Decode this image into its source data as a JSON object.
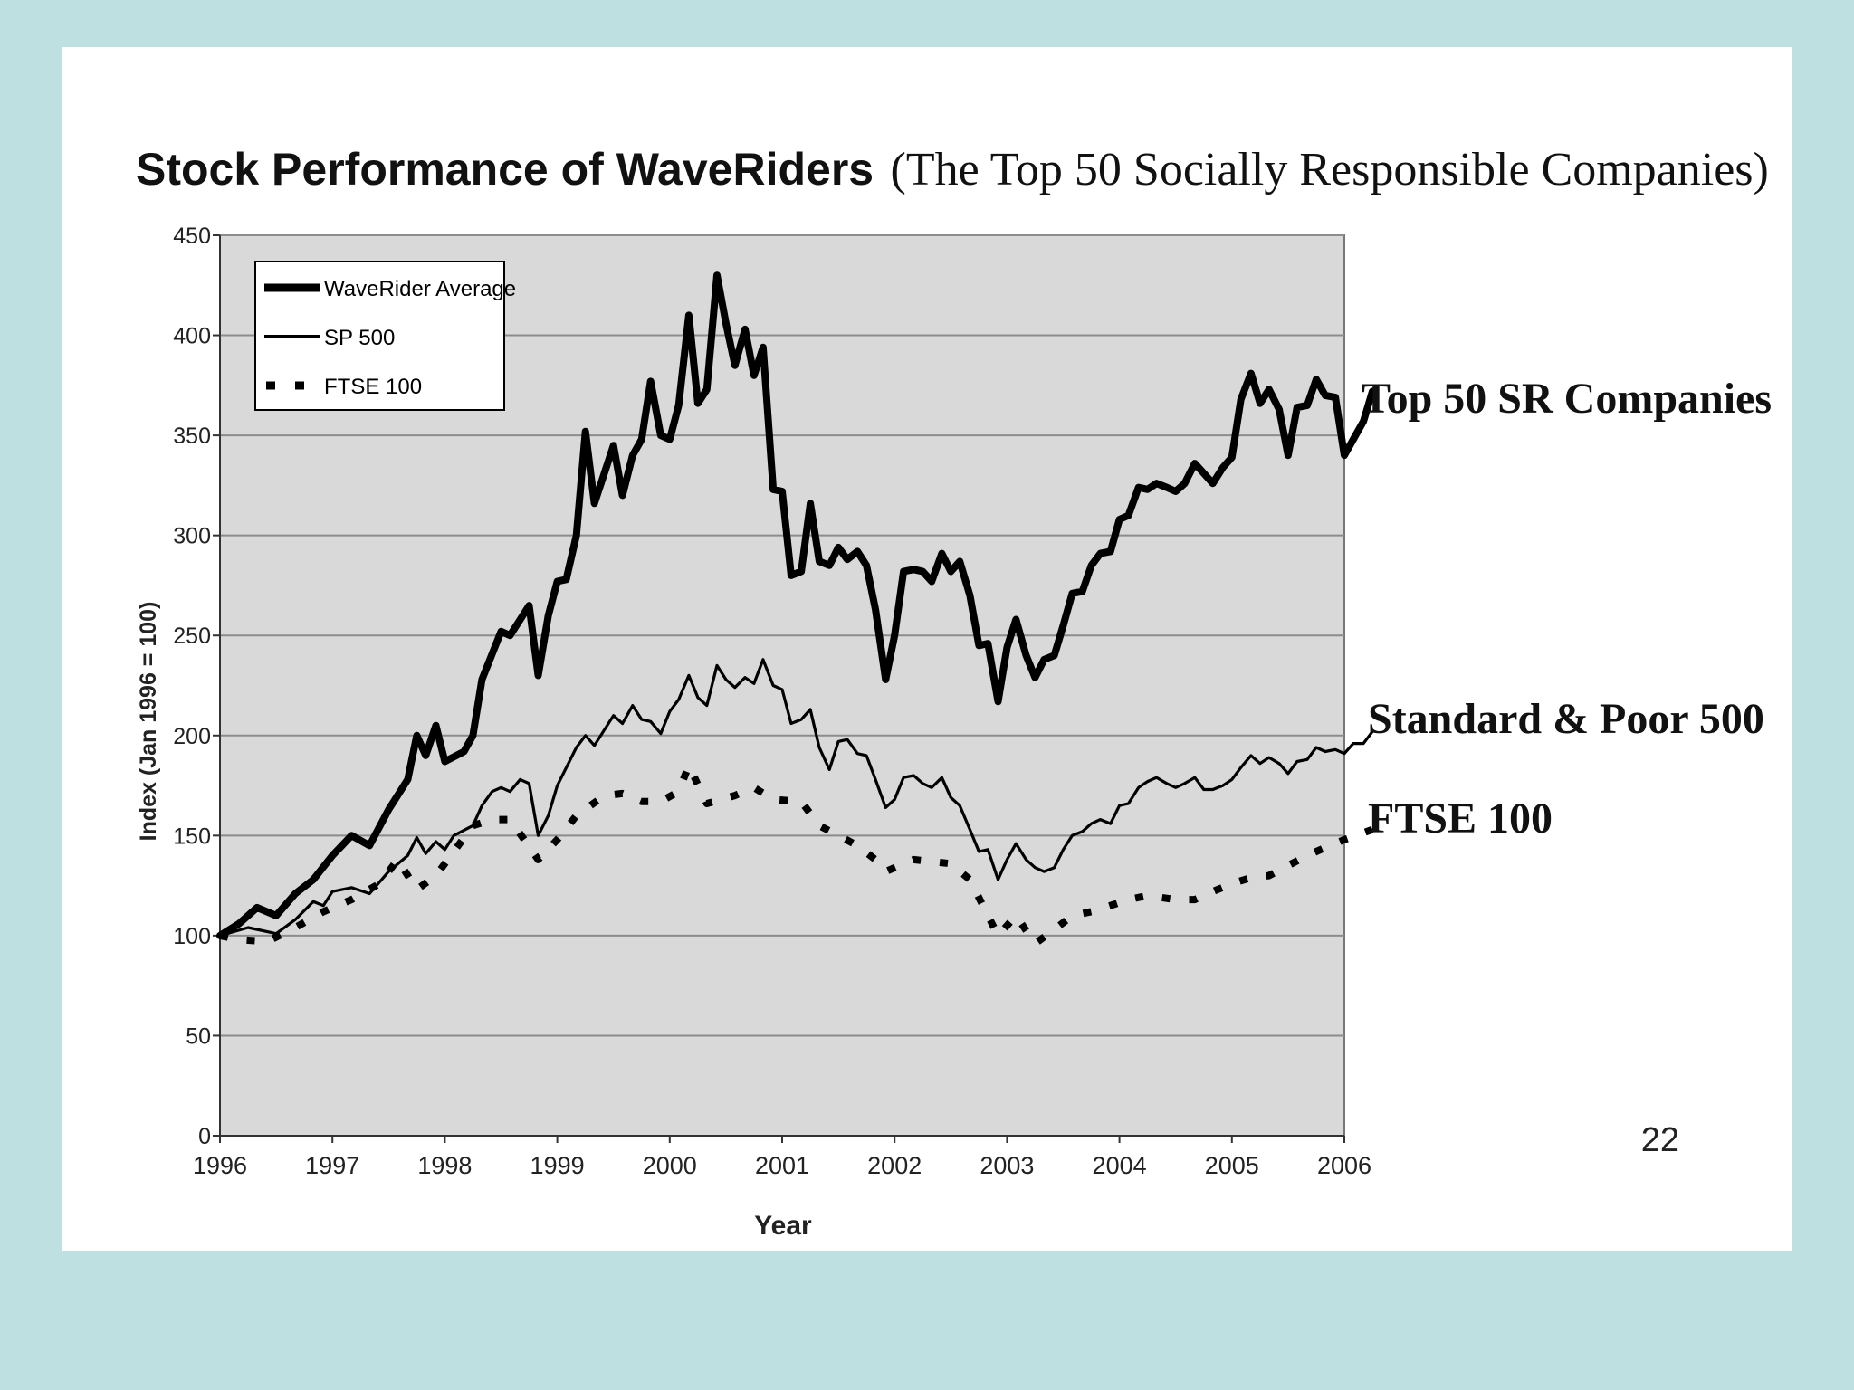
{
  "slide": {
    "page_number": "22"
  },
  "chart_data": {
    "type": "line",
    "title_bold": "Stock Performance of WaveRiders",
    "title_rest": "(The Top 50 Socially Responsible Companies)",
    "xlabel": "Year",
    "ylabel": "Index (Jan 1996 = 100)",
    "xlim": [
      1996,
      2006
    ],
    "ylim": [
      0,
      450
    ],
    "y_ticks": [
      0,
      50,
      100,
      150,
      200,
      250,
      300,
      350,
      400,
      450
    ],
    "y_tick_labels": [
      "0",
      "50",
      "100",
      "150",
      "200",
      "250",
      "300",
      "350",
      "400",
      "450"
    ],
    "x_ticks": [
      1996,
      1997,
      1998,
      1999,
      2000,
      2001,
      2002,
      2003,
      2004,
      2005,
      2006
    ],
    "x_tick_labels": [
      "1996",
      "1997",
      "1998",
      "1999",
      "2000",
      "2001",
      "2002",
      "2003",
      "2004",
      "2005",
      "2006"
    ],
    "grid": true,
    "legend": {
      "position": "top-left",
      "entries": [
        "WaveRider Average",
        "SP 500",
        "FTSE 100"
      ]
    },
    "annotations": [
      "Top 50 SR Companies",
      "Standard & Poor 500",
      "FTSE 100"
    ],
    "series": [
      {
        "name": "WaveRider Average",
        "style": "thick",
        "color": "#000000",
        "points": [
          [
            1996.0,
            100
          ],
          [
            1996.17,
            106
          ],
          [
            1996.33,
            114
          ],
          [
            1996.5,
            110
          ],
          [
            1996.67,
            121
          ],
          [
            1996.83,
            128
          ],
          [
            1997.0,
            140
          ],
          [
            1997.17,
            150
          ],
          [
            1997.33,
            145
          ],
          [
            1997.5,
            163
          ],
          [
            1997.67,
            178
          ],
          [
            1997.75,
            200
          ],
          [
            1997.83,
            190
          ],
          [
            1997.92,
            205
          ],
          [
            1998.0,
            187
          ],
          [
            1998.17,
            192
          ],
          [
            1998.25,
            200
          ],
          [
            1998.33,
            228
          ],
          [
            1998.5,
            252
          ],
          [
            1998.58,
            250
          ],
          [
            1998.75,
            265
          ],
          [
            1998.83,
            230
          ],
          [
            1998.92,
            260
          ],
          [
            1999.0,
            277
          ],
          [
            1999.08,
            278
          ],
          [
            1999.17,
            300
          ],
          [
            1999.25,
            352
          ],
          [
            1999.33,
            316
          ],
          [
            1999.5,
            345
          ],
          [
            1999.58,
            320
          ],
          [
            1999.67,
            340
          ],
          [
            1999.75,
            348
          ],
          [
            1999.83,
            377
          ],
          [
            1999.92,
            350
          ],
          [
            2000.0,
            348
          ],
          [
            2000.08,
            365
          ],
          [
            2000.17,
            410
          ],
          [
            2000.25,
            366
          ],
          [
            2000.33,
            373
          ],
          [
            2000.42,
            430
          ],
          [
            2000.5,
            406
          ],
          [
            2000.58,
            385
          ],
          [
            2000.67,
            403
          ],
          [
            2000.75,
            380
          ],
          [
            2000.83,
            394
          ],
          [
            2000.92,
            323
          ],
          [
            2001.0,
            322
          ],
          [
            2001.08,
            280
          ],
          [
            2001.17,
            282
          ],
          [
            2001.25,
            316
          ],
          [
            2001.33,
            287
          ],
          [
            2001.42,
            285
          ],
          [
            2001.5,
            294
          ],
          [
            2001.58,
            288
          ],
          [
            2001.67,
            292
          ],
          [
            2001.75,
            285
          ],
          [
            2001.83,
            263
          ],
          [
            2001.92,
            228
          ],
          [
            2002.0,
            250
          ],
          [
            2002.08,
            282
          ],
          [
            2002.17,
            283
          ],
          [
            2002.25,
            282
          ],
          [
            2002.33,
            277
          ],
          [
            2002.42,
            291
          ],
          [
            2002.5,
            282
          ],
          [
            2002.58,
            287
          ],
          [
            2002.67,
            270
          ],
          [
            2002.75,
            245
          ],
          [
            2002.83,
            246
          ],
          [
            2002.92,
            217
          ],
          [
            2003.0,
            244
          ],
          [
            2003.08,
            258
          ],
          [
            2003.17,
            240
          ],
          [
            2003.25,
            229
          ],
          [
            2003.33,
            238
          ],
          [
            2003.42,
            240
          ],
          [
            2003.5,
            255
          ],
          [
            2003.58,
            271
          ],
          [
            2003.67,
            272
          ],
          [
            2003.75,
            285
          ],
          [
            2003.83,
            291
          ],
          [
            2003.92,
            292
          ],
          [
            2004.0,
            308
          ],
          [
            2004.08,
            310
          ],
          [
            2004.17,
            324
          ],
          [
            2004.25,
            323
          ],
          [
            2004.33,
            326
          ],
          [
            2004.42,
            324
          ],
          [
            2004.5,
            322
          ],
          [
            2004.58,
            326
          ],
          [
            2004.67,
            336
          ],
          [
            2004.75,
            331
          ],
          [
            2004.83,
            326
          ],
          [
            2004.92,
            334
          ],
          [
            2005.0,
            339
          ],
          [
            2005.08,
            368
          ],
          [
            2005.17,
            381
          ],
          [
            2005.25,
            366
          ],
          [
            2005.33,
            373
          ],
          [
            2005.42,
            363
          ],
          [
            2005.5,
            340
          ],
          [
            2005.58,
            364
          ],
          [
            2005.67,
            365
          ],
          [
            2005.75,
            378
          ],
          [
            2005.83,
            370
          ],
          [
            2005.92,
            369
          ],
          [
            2006.0,
            340
          ],
          [
            2006.08,
            348
          ],
          [
            2006.17,
            357
          ],
          [
            2006.25,
            372
          ]
        ]
      },
      {
        "name": "SP 500",
        "style": "thin",
        "color": "#000000",
        "points": [
          [
            1996.0,
            100
          ],
          [
            1996.25,
            104
          ],
          [
            1996.5,
            101
          ],
          [
            1996.67,
            108
          ],
          [
            1996.83,
            117
          ],
          [
            1996.92,
            115
          ],
          [
            1997.0,
            122
          ],
          [
            1997.17,
            124
          ],
          [
            1997.33,
            121
          ],
          [
            1997.5,
            132
          ],
          [
            1997.67,
            140
          ],
          [
            1997.75,
            149
          ],
          [
            1997.83,
            141
          ],
          [
            1997.92,
            147
          ],
          [
            1998.0,
            143
          ],
          [
            1998.08,
            150
          ],
          [
            1998.25,
            155
          ],
          [
            1998.33,
            165
          ],
          [
            1998.42,
            172
          ],
          [
            1998.5,
            174
          ],
          [
            1998.58,
            172
          ],
          [
            1998.67,
            178
          ],
          [
            1998.75,
            176
          ],
          [
            1998.83,
            150
          ],
          [
            1998.92,
            160
          ],
          [
            1999.0,
            175
          ],
          [
            1999.17,
            194
          ],
          [
            1999.25,
            200
          ],
          [
            1999.33,
            195
          ],
          [
            1999.5,
            210
          ],
          [
            1999.58,
            206
          ],
          [
            1999.67,
            215
          ],
          [
            1999.75,
            208
          ],
          [
            1999.83,
            207
          ],
          [
            1999.92,
            201
          ],
          [
            2000.0,
            212
          ],
          [
            2000.08,
            218
          ],
          [
            2000.17,
            230
          ],
          [
            2000.25,
            219
          ],
          [
            2000.33,
            215
          ],
          [
            2000.42,
            235
          ],
          [
            2000.5,
            228
          ],
          [
            2000.58,
            224
          ],
          [
            2000.67,
            229
          ],
          [
            2000.75,
            226
          ],
          [
            2000.83,
            238
          ],
          [
            2000.92,
            225
          ],
          [
            2001.0,
            223
          ],
          [
            2001.08,
            206
          ],
          [
            2001.17,
            208
          ],
          [
            2001.25,
            213
          ],
          [
            2001.33,
            194
          ],
          [
            2001.42,
            183
          ],
          [
            2001.5,
            197
          ],
          [
            2001.58,
            198
          ],
          [
            2001.67,
            191
          ],
          [
            2001.75,
            190
          ],
          [
            2001.83,
            178
          ],
          [
            2001.92,
            164
          ],
          [
            2002.0,
            168
          ],
          [
            2002.08,
            179
          ],
          [
            2002.17,
            180
          ],
          [
            2002.25,
            176
          ],
          [
            2002.33,
            174
          ],
          [
            2002.42,
            179
          ],
          [
            2002.5,
            169
          ],
          [
            2002.58,
            165
          ],
          [
            2002.67,
            153
          ],
          [
            2002.75,
            142
          ],
          [
            2002.83,
            143
          ],
          [
            2002.92,
            128
          ],
          [
            2003.0,
            138
          ],
          [
            2003.08,
            146
          ],
          [
            2003.17,
            138
          ],
          [
            2003.25,
            134
          ],
          [
            2003.33,
            132
          ],
          [
            2003.42,
            134
          ],
          [
            2003.5,
            143
          ],
          [
            2003.58,
            150
          ],
          [
            2003.67,
            152
          ],
          [
            2003.75,
            156
          ],
          [
            2003.83,
            158
          ],
          [
            2003.92,
            156
          ],
          [
            2004.0,
            165
          ],
          [
            2004.08,
            166
          ],
          [
            2004.17,
            174
          ],
          [
            2004.25,
            177
          ],
          [
            2004.33,
            179
          ],
          [
            2004.42,
            176
          ],
          [
            2004.5,
            174
          ],
          [
            2004.58,
            176
          ],
          [
            2004.67,
            179
          ],
          [
            2004.75,
            173
          ],
          [
            2004.83,
            173
          ],
          [
            2004.92,
            175
          ],
          [
            2005.0,
            178
          ],
          [
            2005.08,
            184
          ],
          [
            2005.17,
            190
          ],
          [
            2005.25,
            186
          ],
          [
            2005.33,
            189
          ],
          [
            2005.42,
            186
          ],
          [
            2005.5,
            181
          ],
          [
            2005.58,
            187
          ],
          [
            2005.67,
            188
          ],
          [
            2005.75,
            194
          ],
          [
            2005.83,
            192
          ],
          [
            2005.92,
            193
          ],
          [
            2006.0,
            191
          ],
          [
            2006.08,
            196
          ],
          [
            2006.17,
            196
          ],
          [
            2006.25,
            202
          ]
        ]
      },
      {
        "name": "FTSE 100",
        "style": "dotted",
        "color": "#000000",
        "points": [
          [
            1996.0,
            100
          ],
          [
            1996.17,
            98
          ],
          [
            1996.42,
            97
          ],
          [
            1996.67,
            104
          ],
          [
            1996.92,
            112
          ],
          [
            1997.17,
            118
          ],
          [
            1997.42,
            126
          ],
          [
            1997.58,
            138
          ],
          [
            1997.75,
            123
          ],
          [
            1997.92,
            130
          ],
          [
            1998.08,
            142
          ],
          [
            1998.25,
            155
          ],
          [
            1998.42,
            158
          ],
          [
            1998.58,
            158
          ],
          [
            1998.83,
            138
          ],
          [
            1999.0,
            148
          ],
          [
            1999.17,
            160
          ],
          [
            1999.42,
            170
          ],
          [
            1999.58,
            171
          ],
          [
            1999.75,
            167
          ],
          [
            1999.92,
            167
          ],
          [
            2000.08,
            172
          ],
          [
            2000.17,
            185
          ],
          [
            2000.33,
            166
          ],
          [
            2000.58,
            170
          ],
          [
            2000.75,
            174
          ],
          [
            2000.92,
            168
          ],
          [
            2001.17,
            167
          ],
          [
            2001.33,
            155
          ],
          [
            2001.5,
            150
          ],
          [
            2001.67,
            145
          ],
          [
            2001.83,
            138
          ],
          [
            2001.92,
            132
          ],
          [
            2002.17,
            138
          ],
          [
            2002.33,
            137
          ],
          [
            2002.5,
            136
          ],
          [
            2002.67,
            128
          ],
          [
            2002.83,
            110
          ],
          [
            2002.92,
            100
          ],
          [
            2003.08,
            110
          ],
          [
            2003.25,
            96
          ],
          [
            2003.42,
            103
          ],
          [
            2003.58,
            110
          ],
          [
            2003.75,
            112
          ],
          [
            2003.92,
            115
          ],
          [
            2004.08,
            118
          ],
          [
            2004.25,
            120
          ],
          [
            2004.5,
            118
          ],
          [
            2004.67,
            118
          ],
          [
            2004.83,
            122
          ],
          [
            2005.0,
            126
          ],
          [
            2005.17,
            129
          ],
          [
            2005.33,
            130
          ],
          [
            2005.5,
            135
          ],
          [
            2005.67,
            140
          ],
          [
            2005.83,
            144
          ],
          [
            2006.0,
            148
          ],
          [
            2006.25,
            153
          ]
        ]
      }
    ]
  }
}
